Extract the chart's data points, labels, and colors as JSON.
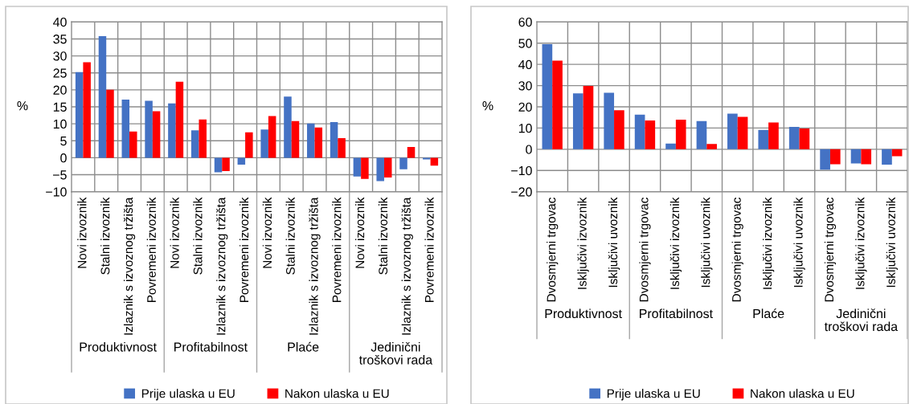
{
  "chart_data": [
    {
      "type": "bar",
      "categories": [
        "Novi izvoznik",
        "Stalni izvoznik",
        "Izlaznik s izvoznog tržišta",
        "Povremeni izvoznik",
        "Novi izvoznik",
        "Stalni izvoznik",
        "Izlaznik s izvoznog tržišta",
        "Povremeni izvoznik",
        "Novi izvoznik",
        "Stalni izvoznik",
        "Izlaznik s izvoznog tržišta",
        "Povremeni izvoznik",
        "Novi izvoznik",
        "Stalni izvoznik",
        "Izlaznik s izvoznog tržišta",
        "Povremeni izvoznik"
      ],
      "series": [
        {
          "name": "Prije ulaska u EU",
          "color": "#4472c4",
          "values": [
            25.2,
            35.8,
            17.1,
            16.8,
            16.0,
            8.1,
            -4.3,
            -2.0,
            8.3,
            18.0,
            10.1,
            10.5,
            -5.5,
            -6.9,
            -3.4,
            -0.5
          ]
        },
        {
          "name": "Nakon ulaska u EU",
          "color": "#ff0000",
          "values": [
            28.1,
            20.0,
            7.7,
            13.7,
            22.4,
            11.3,
            -3.9,
            7.5,
            12.3,
            10.8,
            8.9,
            5.8,
            -6.2,
            -5.8,
            3.2,
            -2.3
          ]
        }
      ],
      "ylabel": "%",
      "ylim": [
        -10,
        40
      ],
      "yticks": [
        {
          "value": -10,
          "label": "−10"
        },
        {
          "value": -5,
          "label": "−5"
        },
        0,
        5,
        10,
        15,
        20,
        25,
        30,
        35,
        40
      ],
      "annotations": [
        "Produktivnost",
        "Profitabilnost",
        "Plaće",
        "Jedinični\ntroškovi rada"
      ],
      "grid": true,
      "legend": "bottom"
    },
    {
      "type": "bar",
      "categories": [
        "Dvosmjerni trgovac",
        "Isključivi izvoznik",
        "Isključivi uvoznik",
        "Dvosmjerni trgovac",
        "Isključivi izvoznik",
        "Isključivi uvoznik",
        "Dvosmjerni trgovac",
        "Isključivi izvoznik",
        "Isključivi uvoznik",
        "Dvosmjerni trgovac",
        "Isključivi izvoznik",
        "Isključivi uvoznik"
      ],
      "series": [
        {
          "name": "Prije ulaska u EU",
          "color": "#4472c4",
          "values": [
            49.5,
            26.3,
            26.6,
            16.3,
            2.7,
            13.3,
            16.8,
            9.1,
            10.5,
            -9.6,
            -6.7,
            -7.2
          ]
        },
        {
          "name": "Nakon ulaska u EU",
          "color": "#ff0000",
          "values": [
            41.8,
            29.8,
            18.4,
            13.6,
            13.9,
            2.5,
            15.3,
            12.6,
            9.8,
            -7.1,
            -7.1,
            -3.3
          ]
        }
      ],
      "ylabel": "%",
      "ylim": [
        -20,
        60
      ],
      "yticks": [
        {
          "value": -20,
          "label": "−20"
        },
        {
          "value": -10,
          "label": "−10"
        },
        0,
        10,
        20,
        30,
        40,
        50,
        60
      ],
      "annotations": [
        "Produktivnost",
        "Profitabilnost",
        "Plaće",
        "Jedinični\ntroškovi rada"
      ],
      "grid": true,
      "legend": "bottom"
    }
  ]
}
